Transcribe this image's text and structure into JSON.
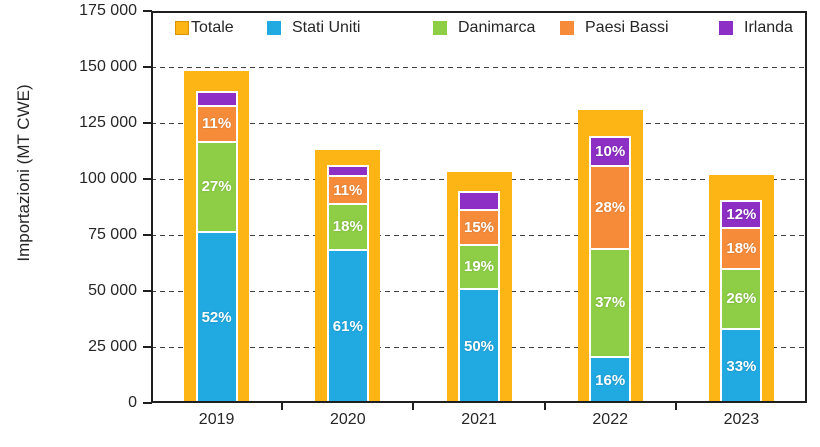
{
  "chart_data": {
    "type": "bar",
    "subtype": "total-bar-with-inner-stacked-percentages",
    "title": "",
    "xlabel": "",
    "ylabel": "Importazioni (MT CWE)",
    "ylim": [
      0,
      175000
    ],
    "ytick_step": 25000,
    "ytick_labels": [
      "0",
      "25 000",
      "50 000",
      "75 000",
      "100 000",
      "125 000",
      "150 000",
      "175 000"
    ],
    "grid": "horizontal dashed",
    "legend_position": "top inside plot, horizontal row",
    "categories": [
      "2019",
      "2020",
      "2021",
      "2022",
      "2023"
    ],
    "legend": [
      {
        "name": "Totale",
        "color": "#FCB515",
        "swatch_border": "#D89400"
      },
      {
        "name": "Stati Uniti",
        "color": "#21A9E1",
        "swatch_border": ""
      },
      {
        "name": "Danimarca",
        "color": "#8DCE46",
        "swatch_border": ""
      },
      {
        "name": "Paesi Bassi",
        "color": "#F68C3A",
        "swatch_border": ""
      },
      {
        "name": "Irlanda",
        "color": "#8D2EC4",
        "swatch_border": ""
      }
    ],
    "totals": [
      148000,
      113000,
      103000,
      131000,
      102000
    ],
    "series": [
      {
        "name": "Stati Uniti",
        "color": "#21A9E1",
        "pct": [
          52,
          61,
          50,
          16,
          33
        ],
        "labels": [
          "52%",
          "61%",
          "50%",
          "16%",
          "33%"
        ]
      },
      {
        "name": "Danimarca",
        "color": "#8DCE46",
        "pct": [
          27,
          18,
          19,
          37,
          26
        ],
        "labels": [
          "27%",
          "18%",
          "19%",
          "37%",
          "26%"
        ]
      },
      {
        "name": "Paesi Bassi",
        "color": "#F68C3A",
        "pct": [
          11,
          11,
          15,
          28,
          18
        ],
        "labels": [
          "11%",
          "11%",
          "15%",
          "28%",
          "18%"
        ]
      },
      {
        "name": "Irlanda",
        "color": "#8D2EC4",
        "pct": [
          4,
          4,
          8,
          10,
          12
        ],
        "labels": [
          "",
          "",
          "",
          "10%",
          "12%"
        ]
      }
    ],
    "colors": {
      "background": "#FFFFFF",
      "frame": "#1F1F1F",
      "gridline": "#3F3F3F",
      "text": "#262626",
      "segment_border": "#FFFFFF",
      "pct_label_text": "#FFFFFF"
    }
  }
}
